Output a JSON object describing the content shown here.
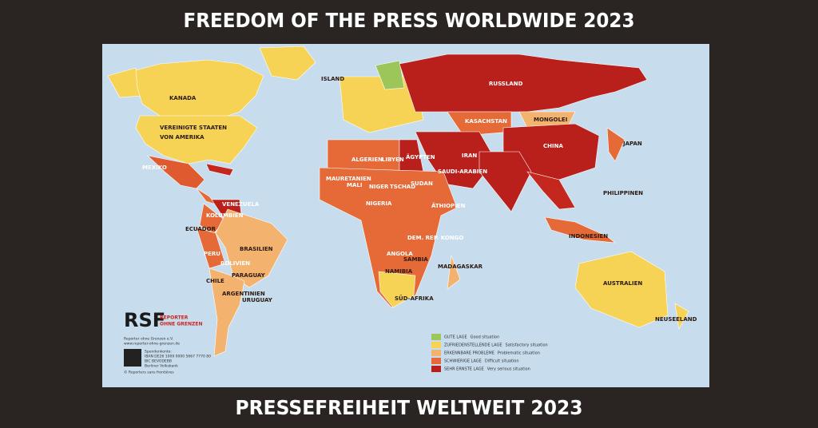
{
  "header": {
    "title": "FREEDOM OF THE PRESS WORLDWIDE 2023"
  },
  "footer": {
    "title": "PRESSEFREIHEIT WELTWEIT 2023"
  },
  "map": {
    "labels": [
      "KANADA",
      "VEREINIGTE STAATEN",
      "VON AMERIKA",
      "MEXIKO",
      "BRASILIEN",
      "ARGENTINIEN",
      "PERU",
      "BOLIVIEN",
      "CHILE",
      "KOLUMBIEN",
      "VENEZUELA",
      "ECUADOR",
      "PARAGUAY",
      "URUGUAY",
      "RUSSLAND",
      "CHINA",
      "MONGOLEI",
      "KASACHSTAN",
      "ALGERIEN",
      "LIBYEN",
      "ÄGYPTEN",
      "MALI",
      "NIGER",
      "TSCHAD",
      "SUDAN",
      "NIGERIA",
      "ÄTHIOPIEN",
      "ANGOLA",
      "NAMIBIA",
      "SÜD-AFRIKA",
      "MADAGASKAR",
      "DEM. REP. KONGO",
      "SAMBIA",
      "AUSTRALIEN",
      "NEUSEELAND",
      "INDONESIEN",
      "PHILIPPINEN",
      "JAPAN",
      "ISLAND",
      "IRAN",
      "SAUDI-ARABIEN",
      "MAURETANIEN"
    ],
    "legend": [
      {
        "label": "GUTE LAGE",
        "description": "Good situation",
        "color": "#9cc65a"
      },
      {
        "label": "ZUFRIEDENSTELLENDE LAGE",
        "description": "Satisfactory situation",
        "color": "#f6d354"
      },
      {
        "label": "ERKENNBARE PROBLEME",
        "description": "Problematic situation",
        "color": "#f3b26e"
      },
      {
        "label": "SCHWIERIGE LAGE",
        "description": "Difficult situation",
        "color": "#e66a37"
      },
      {
        "label": "SEHR ERNSTE LAGE",
        "description": "Very serious situation",
        "color": "#b9201c"
      }
    ]
  },
  "publisher": {
    "logo": "RSF",
    "logo_lines": [
      "REPORTER",
      "OHNE GRENZEN"
    ],
    "info": [
      "Reporter ohne Grenzen e.V.",
      "www.reporter-ohne-grenzen.de",
      "Spendenkonto:",
      "IBAN DE26 1009 0000 5667 7770 80",
      "BIC BEVODEBB",
      "Berliner Volksbank",
      "© Reporters sans frontières"
    ]
  }
}
